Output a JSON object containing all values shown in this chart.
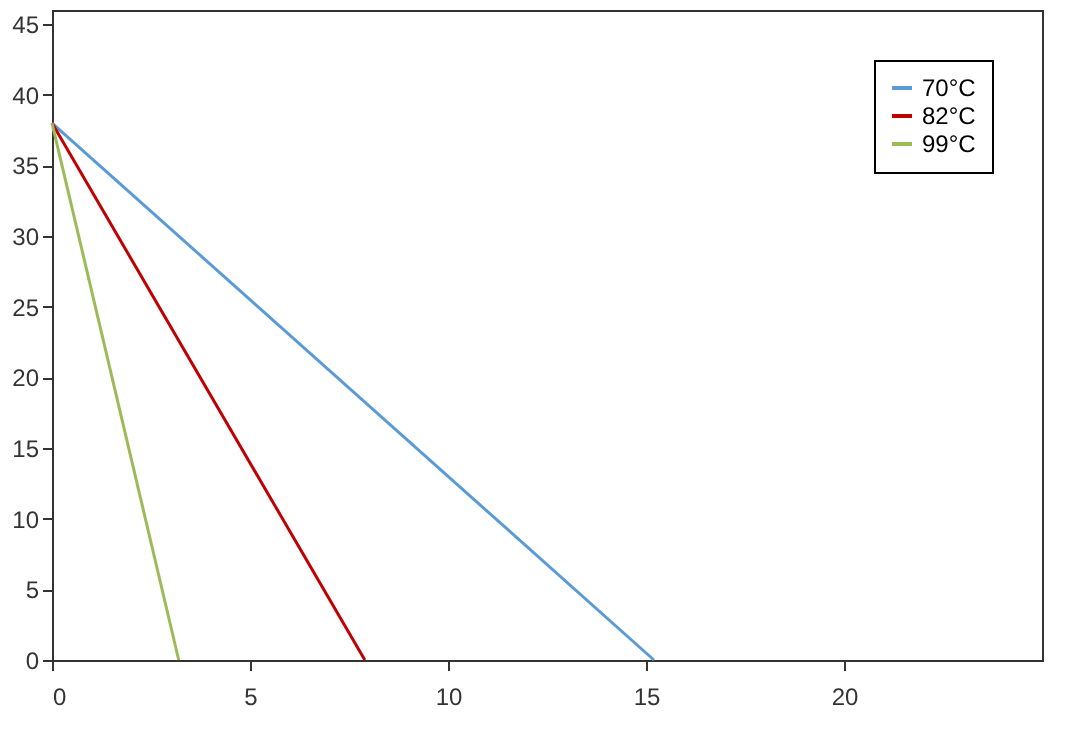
{
  "chart_data": {
    "type": "line",
    "xlim": [
      0,
      25
    ],
    "xticks": [
      0,
      5,
      10,
      15,
      20
    ],
    "ylim": [
      0,
      46
    ],
    "yticks": [
      0,
      5,
      10,
      15,
      20,
      25,
      30,
      35,
      40,
      45
    ],
    "grid": false,
    "legend": "top right",
    "marker": "none",
    "line_style": "solid",
    "series": [
      {
        "name": "70°C",
        "color": "#5b9bd5",
        "x": [
          0,
          15.2
        ],
        "values": [
          38,
          0
        ]
      },
      {
        "name": "82°C",
        "color": "#c00000",
        "x": [
          0,
          7.9
        ],
        "values": [
          38,
          0
        ]
      },
      {
        "name": "99°C",
        "color": "#9bbb59",
        "x": [
          0,
          3.2
        ],
        "values": [
          38,
          0
        ]
      }
    ]
  }
}
